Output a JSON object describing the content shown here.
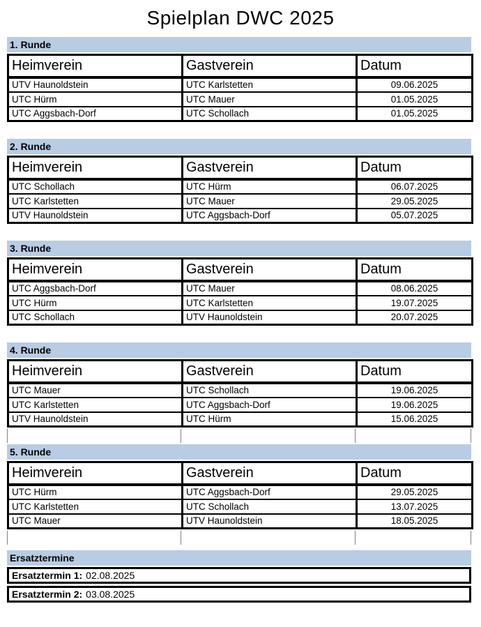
{
  "page": {
    "title": "Spielplan DWC 2025"
  },
  "colors": {
    "section_header_bg": "#b8cce4",
    "table_border": "#000000"
  },
  "table_headers": {
    "home": "Heimverein",
    "guest": "Gastverein",
    "date": "Datum"
  },
  "rounds": [
    {
      "label": "1. Runde",
      "matches": [
        {
          "home": "UTV Haunoldstein",
          "guest": "UTC Karlstetten",
          "date": "09.06.2025"
        },
        {
          "home": "UTC Hürm",
          "guest": "UTC Mauer",
          "date": "01.05.2025"
        },
        {
          "home": "UTC Aggsbach-Dorf",
          "guest": "UTC Schollach",
          "date": "01.05.2025"
        }
      ]
    },
    {
      "label": "2. Runde",
      "matches": [
        {
          "home": "UTC Schollach",
          "guest": "UTC Hürm",
          "date": "06.07.2025"
        },
        {
          "home": "UTC Karlstetten",
          "guest": "UTC Mauer",
          "date": "29.05.2025"
        },
        {
          "home": "UTV Haunoldstein",
          "guest": "UTC Aggsbach-Dorf",
          "date": "05.07.2025"
        }
      ]
    },
    {
      "label": "3. Runde",
      "matches": [
        {
          "home": "UTC Aggsbach-Dorf",
          "guest": "UTC Mauer",
          "date": "08.06.2025"
        },
        {
          "home": "UTC Hürm",
          "guest": "UTC Karlstetten",
          "date": "19.07.2025"
        },
        {
          "home": "UTC Schollach",
          "guest": "UTV Haunoldstein",
          "date": "20.07.2025"
        }
      ]
    },
    {
      "label": "4. Runde",
      "matches": [
        {
          "home": "UTC Mauer",
          "guest": "UTC Schollach",
          "date": "19.06.2025"
        },
        {
          "home": "UTC Karlstetten",
          "guest": "UTC Aggsbach-Dorf",
          "date": "19.06.2025"
        },
        {
          "home": "UTV Haunoldstein",
          "guest": "UTC Hürm",
          "date": "15.06.2025"
        }
      ]
    },
    {
      "label": "5. Runde",
      "matches": [
        {
          "home": "UTC Hürm",
          "guest": "UTC Aggsbach-Dorf",
          "date": "29.05.2025"
        },
        {
          "home": "UTC Karlstetten",
          "guest": "UTC Schollach",
          "date": "13.07.2025"
        },
        {
          "home": "UTC Mauer",
          "guest": "UTV Haunoldstein",
          "date": "18.05.2025"
        }
      ]
    }
  ],
  "ersatztermine": {
    "label": "Ersatztermine",
    "items": [
      {
        "label": "Ersatztermin 1:",
        "date": "02.08.2025"
      },
      {
        "label": "Ersatztermin 2:",
        "date": "03.08.2025"
      }
    ]
  }
}
